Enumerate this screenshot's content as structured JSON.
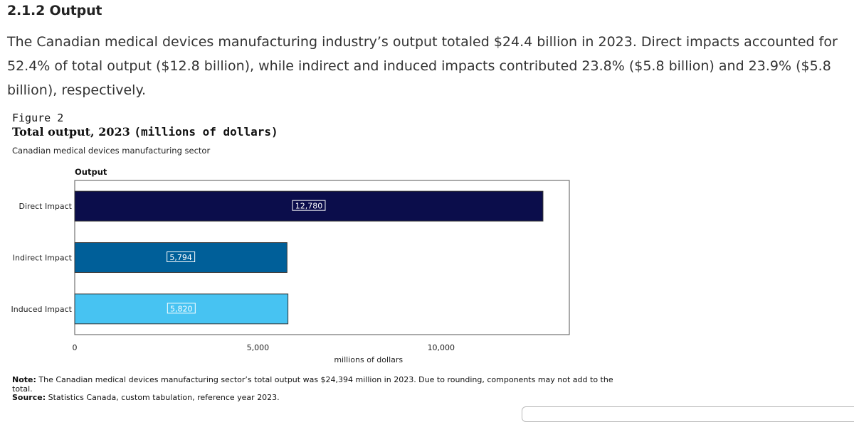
{
  "section": {
    "heading": "2.1.2 Output",
    "paragraph": "The Canadian medical devices manufacturing industry’s output totaled $24.4 billion in 2023. Direct impacts accounted for 52.4% of total output ($12.8 billion), while indirect and induced impacts contributed 23.8% ($5.8 billion) and 23.9% ($5.8 billion), respectively."
  },
  "figure": {
    "label": "Figure 2",
    "title_main": "Total output, 2023",
    "title_units": "(millions of dollars)",
    "subtitle": "Canadian medical devices manufacturing sector",
    "note_label": "Note:",
    "note_text": "The Canadian medical devices manufacturing sector’s total output was $24,394 million in 2023. Due to rounding, components may not add to the total.",
    "source_label": "Source:",
    "source_text": "Statistics Canada, custom tabulation, reference year 2023."
  },
  "chart_data": {
    "type": "bar",
    "orientation": "horizontal",
    "title": "Total output, 2023 (millions of dollars)",
    "series_label": "Output",
    "categories": [
      "Direct Impact",
      "Indirect Impact",
      "Induced Impact"
    ],
    "values": [
      12780,
      5794,
      5820
    ],
    "data_labels": [
      "12,780",
      "5,794",
      "5,820"
    ],
    "colors": [
      "#0b0d4b",
      "#005f99",
      "#47c3f2"
    ],
    "xlabel": "millions of dollars",
    "xlim": [
      0,
      13500
    ],
    "xticks": [
      0,
      5000,
      10000
    ],
    "xtick_labels": [
      "0",
      "5,000",
      "10,000"
    ],
    "grid": false
  }
}
